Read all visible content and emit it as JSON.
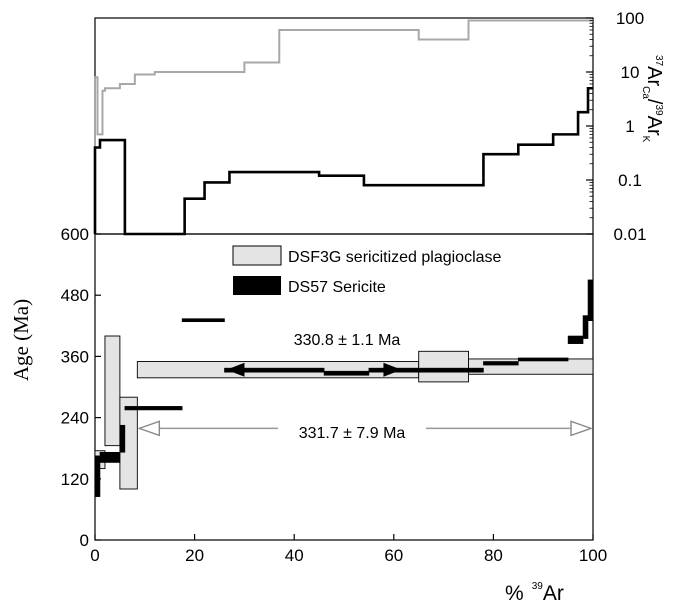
{
  "chart_data": [
    {
      "type": "line",
      "panel": "ratio",
      "xlim": [
        0,
        100
      ],
      "ylim": [
        0.01,
        100
      ],
      "yscale": "log",
      "y_ticks": [
        0.01,
        0.1,
        1,
        10,
        100
      ],
      "y_tick_labels": [
        "0.01",
        "0.1",
        "1",
        "10",
        "100"
      ],
      "ylabel": "37ArCa/39ArK",
      "series": [
        {
          "color": "#a8a8a8",
          "steps": [
            {
              "x": [
                0,
                0.5
              ],
              "y": 8
            },
            {
              "x": [
                0.5,
                1.5
              ],
              "y": 0.7
            },
            {
              "x": [
                1.5,
                2
              ],
              "y": 4.5
            },
            {
              "x": [
                2,
                5
              ],
              "y": 5
            },
            {
              "x": [
                5,
                8
              ],
              "y": 6
            },
            {
              "x": [
                8,
                12
              ],
              "y": 9
            },
            {
              "x": [
                12,
                30
              ],
              "y": 10
            },
            {
              "x": [
                30,
                37
              ],
              "y": 15
            },
            {
              "x": [
                37,
                65
              ],
              "y": 60
            },
            {
              "x": [
                65,
                75
              ],
              "y": 40
            },
            {
              "x": [
                75,
                100
              ],
              "y": 90
            }
          ]
        },
        {
          "color": "#000000",
          "steps": [
            {
              "x": [
                0,
                1
              ],
              "y": 0.4
            },
            {
              "x": [
                1,
                6
              ],
              "y": 0.55
            },
            {
              "x": [
                6,
                18
              ],
              "y": 0.01
            },
            {
              "x": [
                18,
                22
              ],
              "y": 0.045
            },
            {
              "x": [
                22,
                27
              ],
              "y": 0.09
            },
            {
              "x": [
                27,
                45
              ],
              "y": 0.14
            },
            {
              "x": [
                45,
                54
              ],
              "y": 0.12
            },
            {
              "x": [
                54,
                78
              ],
              "y": 0.08
            },
            {
              "x": [
                78,
                85
              ],
              "y": 0.3
            },
            {
              "x": [
                85,
                92
              ],
              "y": 0.45
            },
            {
              "x": [
                92,
                97
              ],
              "y": 0.7
            },
            {
              "x": [
                97,
                99
              ],
              "y": 1.8
            },
            {
              "x": [
                99,
                100
              ],
              "y": 5
            }
          ]
        }
      ]
    },
    {
      "type": "area",
      "panel": "age-spectrum",
      "xlim": [
        0,
        100
      ],
      "ylim": [
        0,
        600
      ],
      "y_ticks": [
        0,
        120,
        240,
        360,
        480,
        600
      ],
      "x_ticks": [
        0,
        20,
        40,
        60,
        80,
        100
      ],
      "ylabel": "Age (Ma)",
      "xlabel": "% 39Ar",
      "legend_position": "top-right",
      "series": [
        {
          "name": "DSF3G sericitized plagioclase",
          "fill": "#e4e4e4",
          "steps": [
            {
              "x": [
                0,
                2
              ],
              "y": [
                140,
                175
              ]
            },
            {
              "x": [
                2,
                5
              ],
              "y": [
                185,
                400
              ]
            },
            {
              "x": [
                5,
                8.5
              ],
              "y": [
                100,
                280
              ]
            },
            {
              "x": [
                8.5,
                65
              ],
              "y": [
                318,
                350
              ]
            },
            {
              "x": [
                65,
                75
              ],
              "y": [
                310,
                370
              ]
            },
            {
              "x": [
                75,
                100
              ],
              "y": [
                325,
                355
              ]
            }
          ]
        },
        {
          "name": "DS57 Sericite",
          "fill": "#000000",
          "steps": [
            {
              "x": [
                0,
                1
              ],
              "y": [
                85,
                165
              ]
            },
            {
              "x": [
                1,
                5
              ],
              "y": [
                152,
                172
              ]
            },
            {
              "x": [
                5,
                6
              ],
              "y": [
                172,
                225
              ]
            },
            {
              "x": [
                6,
                17.5
              ],
              "y": [
                255,
                262
              ]
            },
            {
              "x": [
                17.5,
                26
              ],
              "y": [
                428,
                434
              ]
            },
            {
              "x": [
                26,
                46
              ],
              "y": [
                329,
                337
              ]
            },
            {
              "x": [
                46,
                55
              ],
              "y": [
                323,
                331
              ]
            },
            {
              "x": [
                55,
                78
              ],
              "y": [
                329,
                337
              ]
            },
            {
              "x": [
                78,
                85
              ],
              "y": [
                343,
                350
              ]
            },
            {
              "x": [
                85,
                95
              ],
              "y": [
                351,
                357
              ]
            },
            {
              "x": [
                95,
                98
              ],
              "y": [
                385,
                400
              ]
            },
            {
              "x": [
                98,
                99
              ],
              "y": [
                395,
                440
              ]
            },
            {
              "x": [
                99,
                100
              ],
              "y": [
                430,
                510
              ]
            }
          ]
        }
      ],
      "annotations": [
        {
          "text": "330.8 ± 1.1 Ma",
          "x_range": [
            26,
            78
          ],
          "y": 330
        },
        {
          "text": "331.7 ± 7.9 Ma",
          "x_range": [
            8.5,
            100
          ],
          "y": 215
        }
      ]
    }
  ],
  "labels": {
    "ratio_axis_top": "37",
    "ratio_axis_ar1": "Ar",
    "ratio_axis_sub1": "Ca",
    "ratio_axis_slash": "/",
    "ratio_axis_39": "39",
    "ratio_axis_ar2": "Ar",
    "ratio_axis_sub2": "K",
    "age_axis_label": "Age  (Ma)",
    "x_axis_pct": "%",
    "x_axis_39": "39",
    "x_axis_ar": "Ar",
    "legend_1": "DSF3G sericitized plagioclase",
    "legend_2": "DS57 Sericite",
    "plateau_1": "330.8 ± 1.1 Ma",
    "plateau_2": "331.7 ± 7.9 Ma"
  },
  "x_tick_labels": [
    "0",
    "20",
    "40",
    "60",
    "80",
    "100"
  ],
  "age_tick_labels": [
    "0",
    "120",
    "240",
    "360",
    "480",
    "600"
  ]
}
